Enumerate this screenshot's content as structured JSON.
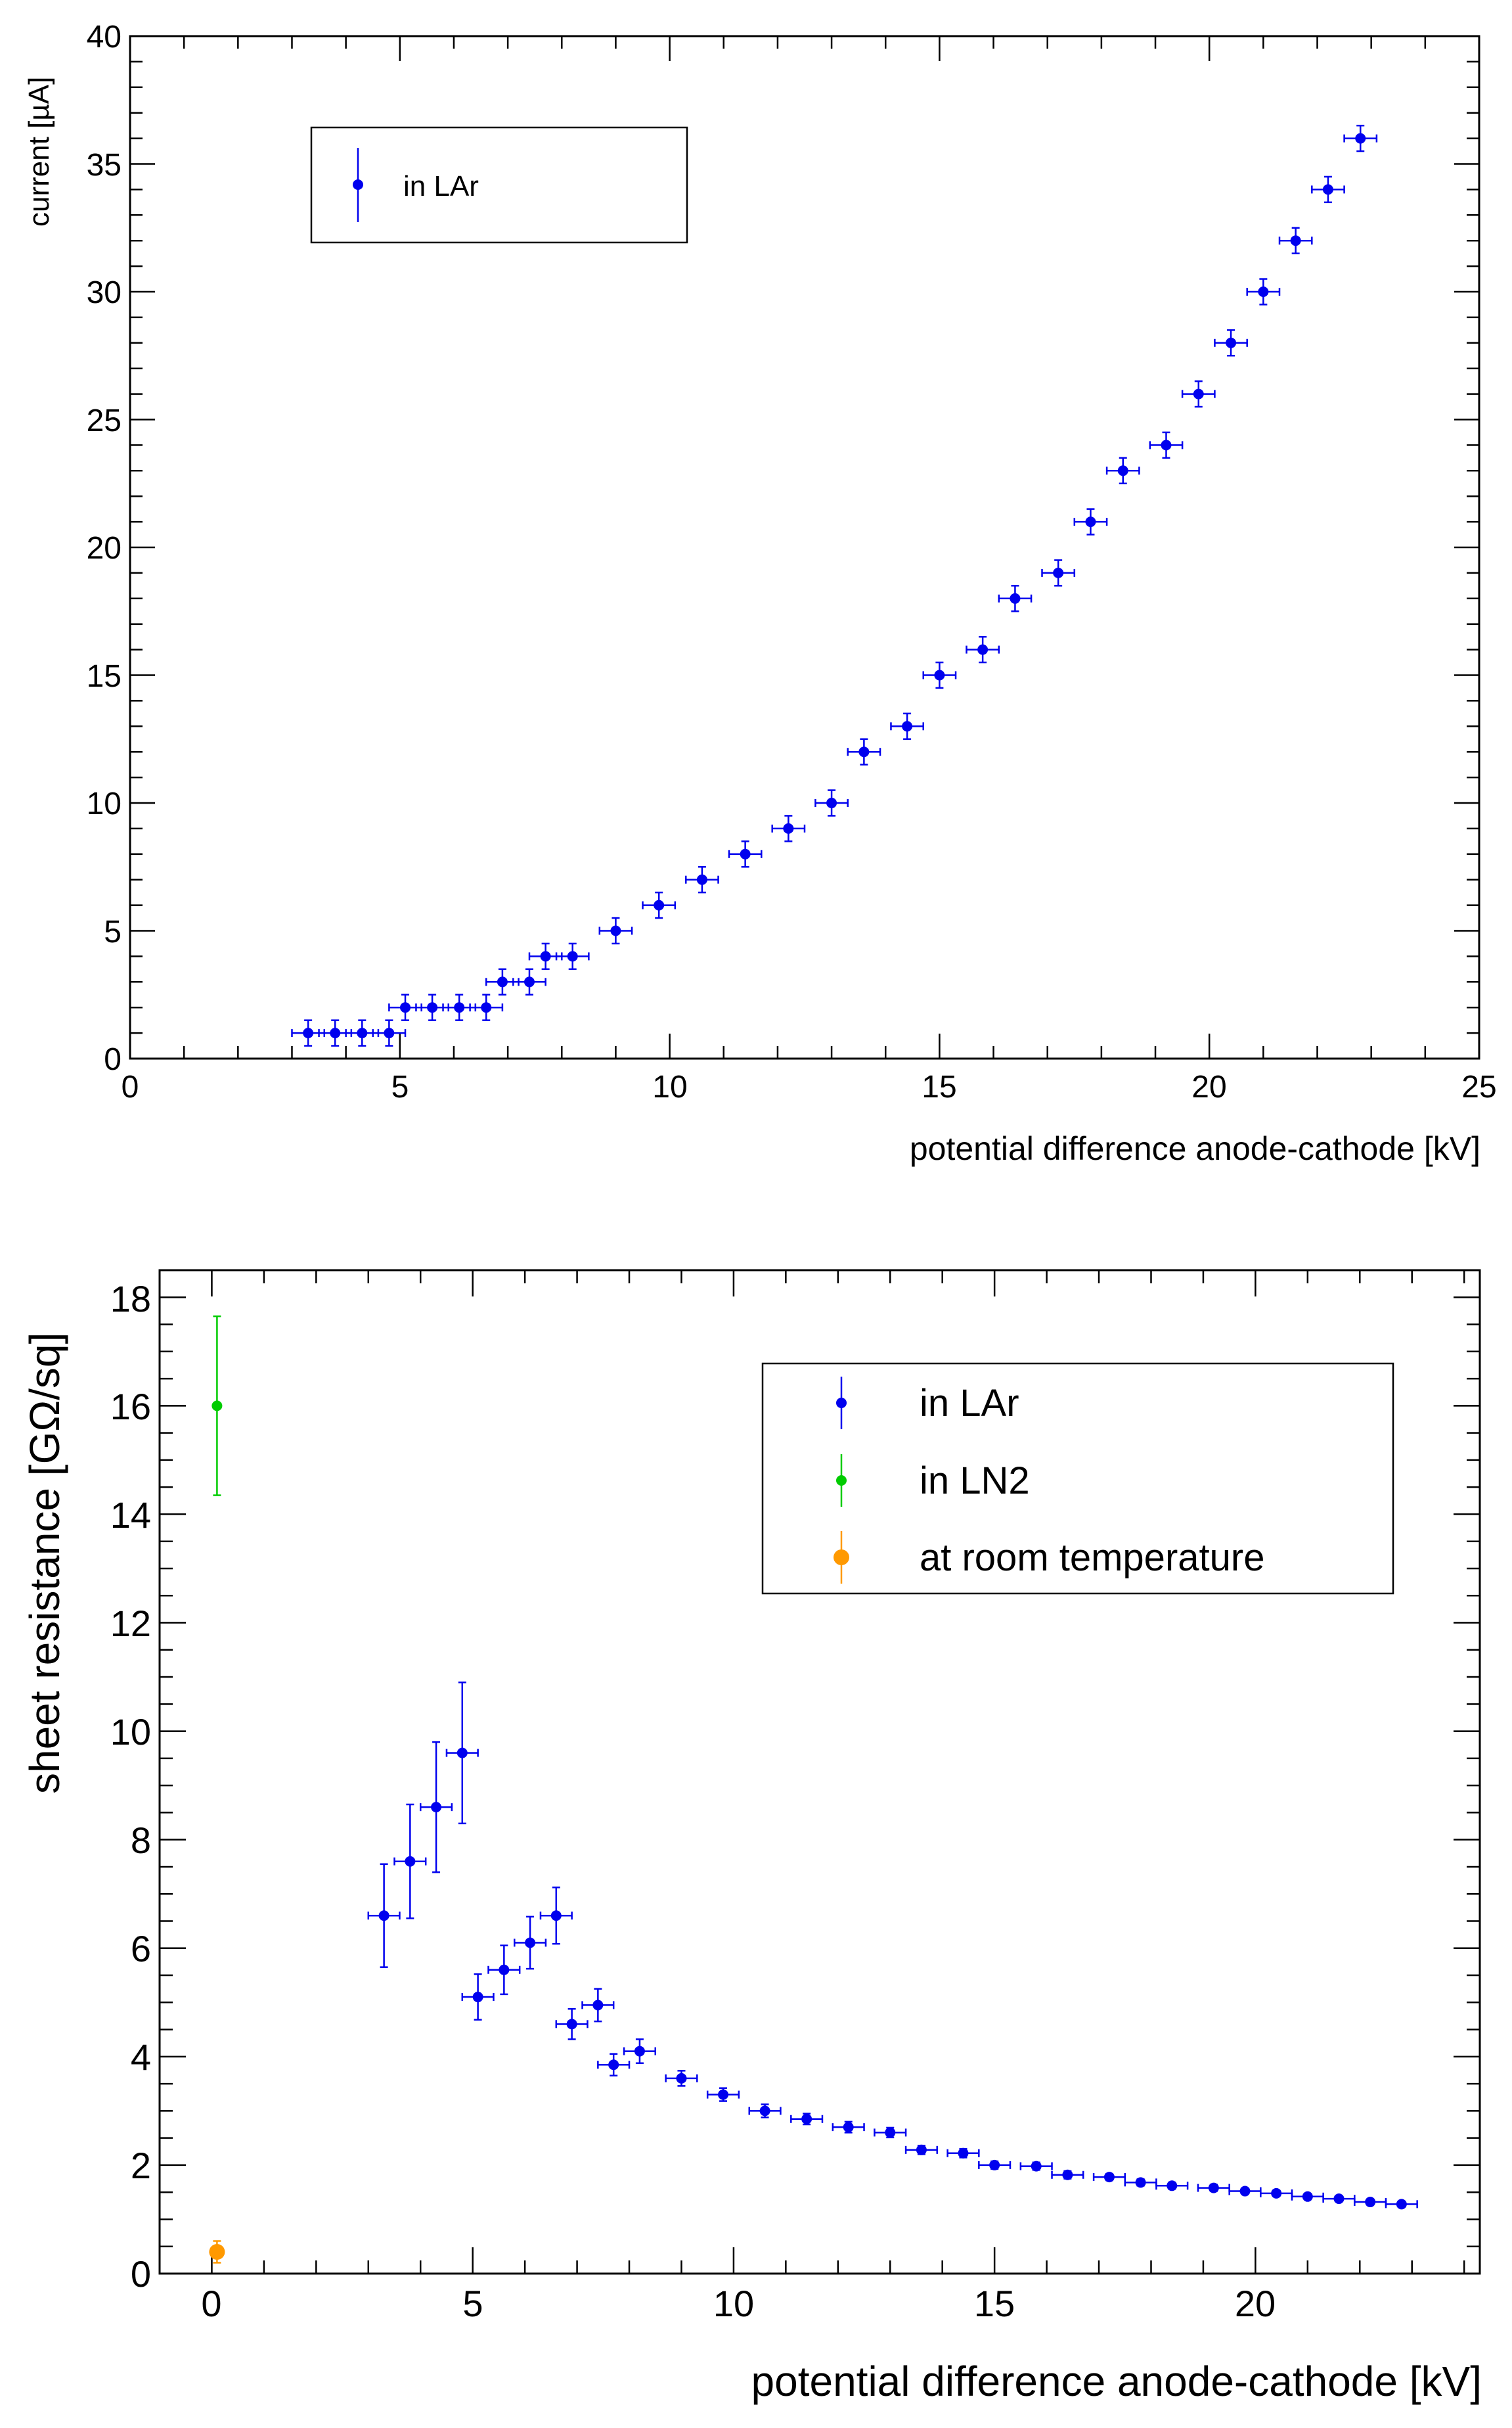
{
  "colors": {
    "lar": "#0000ee",
    "ln2": "#00cc00",
    "room": "#ff9900",
    "axis": "#000000"
  },
  "chart_data": [
    {
      "type": "scatter",
      "ylabel": "current [µA]",
      "xlabel": "potential difference anode-cathode [kV]",
      "xlim": [
        0,
        25
      ],
      "ylim": [
        0,
        40
      ],
      "x_ticks": [
        "0",
        "5",
        "10",
        "15",
        "20",
        "25"
      ],
      "y_ticks": [
        "0",
        "5",
        "10",
        "15",
        "20",
        "25",
        "30",
        "35",
        "40"
      ],
      "legend": [
        "in LAr"
      ],
      "legend_position": "top-left",
      "series": [
        {
          "name": "in LAr",
          "color": "#0000ee",
          "x": [
            3.3,
            3.8,
            4.3,
            4.8,
            5.1,
            5.6,
            6.1,
            6.6,
            6.9,
            7.4,
            7.7,
            8.2,
            9.0,
            9.8,
            10.6,
            11.4,
            12.2,
            13.0,
            13.6,
            14.4,
            15.0,
            15.8,
            16.4,
            17.2,
            17.8,
            18.4,
            19.2,
            19.8,
            20.4,
            21.0,
            21.6,
            22.2,
            22.8
          ],
          "y": [
            1,
            1,
            1,
            1,
            2,
            2,
            2,
            2,
            3,
            3,
            4,
            4,
            5,
            6,
            7,
            8,
            9,
            10,
            12,
            13,
            15,
            16,
            18,
            19,
            21,
            23,
            24,
            26,
            28,
            30,
            32,
            34,
            36
          ],
          "x_err": 0.3,
          "y_err": 0.5
        }
      ]
    },
    {
      "type": "scatter",
      "ylabel": "sheet resistance [GΩ/sq]",
      "xlabel": "potential difference anode-cathode [kV]",
      "xlim": [
        -1,
        24.3
      ],
      "ylim": [
        0,
        18.5
      ],
      "x_ticks": [
        "0",
        "5",
        "10",
        "15",
        "20"
      ],
      "y_ticks": [
        "0",
        "2",
        "4",
        "6",
        "8",
        "10",
        "12",
        "14",
        "16",
        "18"
      ],
      "legend": [
        "in LAr",
        "in LN2",
        "at room temperature"
      ],
      "legend_position": "top-right",
      "series": [
        {
          "name": "in LAr",
          "color": "#0000ee",
          "x": [
            3.3,
            3.8,
            4.3,
            4.8,
            5.1,
            5.6,
            6.1,
            6.6,
            6.9,
            7.4,
            7.7,
            8.2,
            9.0,
            9.8,
            10.6,
            11.4,
            12.2,
            13.0,
            13.6,
            14.4,
            15.0,
            15.8,
            16.4,
            17.2,
            17.8,
            18.4,
            19.2,
            19.8,
            20.4,
            21.0,
            21.6,
            22.2,
            22.8
          ],
          "y": [
            6.6,
            7.6,
            8.6,
            9.6,
            5.1,
            5.6,
            6.1,
            6.6,
            4.6,
            4.95,
            3.85,
            4.1,
            3.6,
            3.3,
            3.0,
            2.85,
            2.7,
            2.6,
            2.28,
            2.22,
            2.0,
            1.98,
            1.82,
            1.78,
            1.68,
            1.62,
            1.58,
            1.52,
            1.48,
            1.42,
            1.38,
            1.32,
            1.28
          ],
          "x_err": 0.3,
          "y_err": [
            0.95,
            1.05,
            1.2,
            1.3,
            0.42,
            0.45,
            0.48,
            0.52,
            0.28,
            0.3,
            0.2,
            0.22,
            0.14,
            0.12,
            0.12,
            0.1,
            0.1,
            0.09,
            0.08,
            0.08,
            0.07,
            0.07,
            0.07,
            0.06,
            0.06,
            0.06,
            0.06,
            0.05,
            0.05,
            0.05,
            0.05,
            0.05,
            0.05
          ]
        },
        {
          "name": "in LN2",
          "color": "#00cc00",
          "x": [
            0.1
          ],
          "y": [
            16.0
          ],
          "x_err": 0,
          "y_err": [
            1.65
          ]
        },
        {
          "name": "at room temperature",
          "color": "#ff9900",
          "x": [
            0.1
          ],
          "y": [
            0.4
          ],
          "x_err": 0,
          "y_err": [
            0.2
          ]
        }
      ]
    }
  ]
}
